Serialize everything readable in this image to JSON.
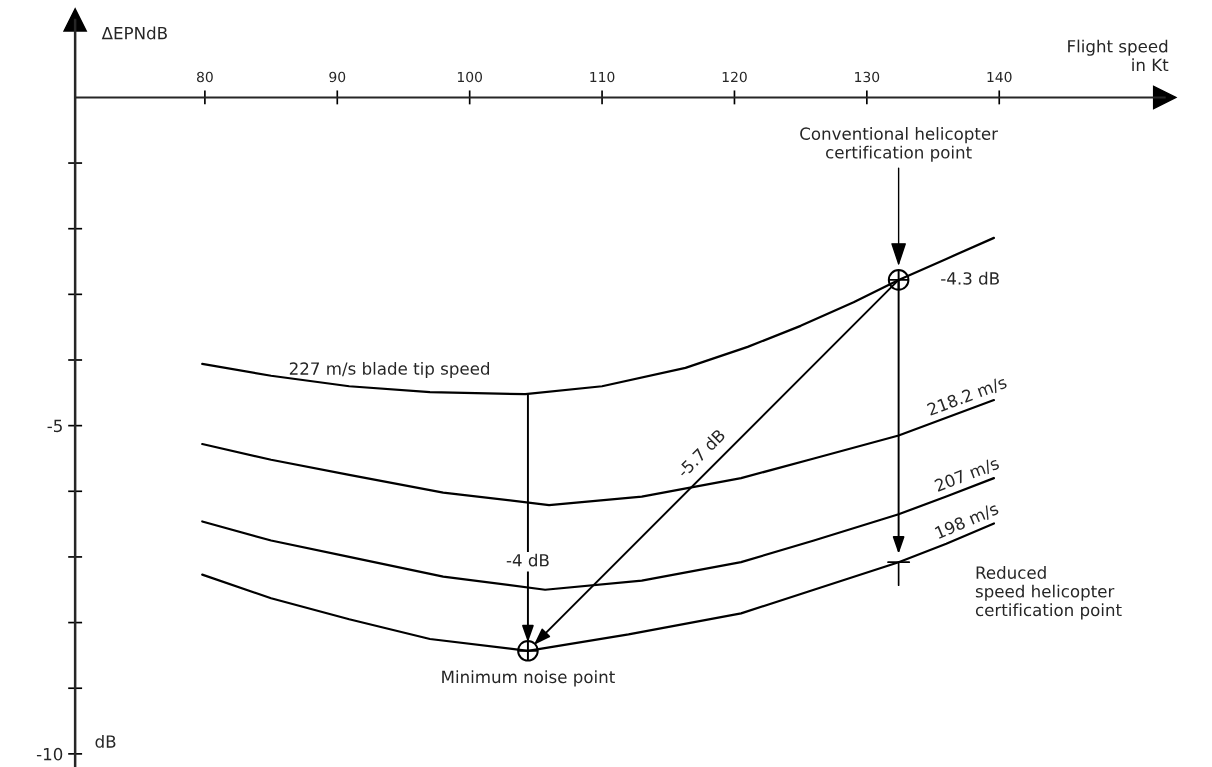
{
  "chart_data": {
    "type": "line",
    "xlabel": "Flight speed\nin Kt",
    "ylabel": "ΔEPNdB",
    "xlim": [
      70.2,
      152.5
    ],
    "ylim": [
      -10.2,
      1.18
    ],
    "xticks": [
      80,
      90,
      100,
      110,
      120,
      130,
      140
    ],
    "yticks": [
      {
        "value": -1,
        "label": null
      },
      {
        "value": -2,
        "label": null
      },
      {
        "value": -3,
        "label": null
      },
      {
        "value": -4,
        "label": null
      },
      -5,
      {
        "value": -6,
        "label": null
      },
      {
        "value": -7,
        "label": null
      },
      {
        "value": -8,
        "label": null
      },
      {
        "value": -9,
        "label": null
      },
      -10
    ],
    "grid": false,
    "legend": false,
    "series": [
      {
        "name": "227 m/s blade tip speed",
        "color": "#000000",
        "x": [
          79.8,
          85,
          90.9,
          97,
          104.2,
          110,
          116.3,
          121,
          125,
          129,
          132.4,
          136,
          139.6
        ],
        "values": [
          -4.06,
          -4.24,
          -4.4,
          -4.49,
          -4.52,
          -4.4,
          -4.12,
          -3.8,
          -3.48,
          -3.12,
          -2.78,
          -2.46,
          -2.14
        ]
      },
      {
        "name": "218.2 m/s",
        "color": "#000000",
        "x": [
          79.8,
          85,
          90.9,
          98,
          106,
          113,
          120.5,
          126,
          132.4,
          136,
          139.6
        ],
        "values": [
          -5.28,
          -5.52,
          -5.75,
          -6.02,
          -6.21,
          -6.08,
          -5.8,
          -5.5,
          -5.15,
          -4.88,
          -4.61
        ]
      },
      {
        "name": "207 m/s",
        "color": "#000000",
        "x": [
          79.8,
          85,
          90.9,
          98,
          105.7,
          113,
          120.5,
          126,
          132.4,
          136,
          139.6
        ],
        "values": [
          -6.46,
          -6.75,
          -7.0,
          -7.3,
          -7.5,
          -7.36,
          -7.08,
          -6.75,
          -6.35,
          -6.08,
          -5.8
        ]
      },
      {
        "name": "198 m/s",
        "color": "#000000",
        "x": [
          79.8,
          85,
          90.9,
          97,
          104.4,
          112,
          120.5,
          126,
          132.4,
          136,
          139.6
        ],
        "values": [
          -7.27,
          -7.63,
          -7.95,
          -8.25,
          -8.43,
          -8.18,
          -7.86,
          -7.5,
          -7.08,
          -6.8,
          -6.49
        ]
      },
      {
        "type": "scatter",
        "marker": "circle",
        "color": "#000000",
        "x": [
          132.4,
          104.4
        ],
        "values": [
          -2.78,
          -8.43
        ]
      }
    ],
    "annotations": [
      "Conventional helicopter\ncertification point",
      {
        "text": "-4.3 dB",
        "x": 132.4,
        "y": -2.78
      },
      {
        "text": "Minimum noise point",
        "x": 104.4,
        "y": -8.43
      },
      "Reduced\nspeed helicopter\ncertification point",
      "-4 dB",
      "-5.7 dB",
      "dB"
    ]
  }
}
